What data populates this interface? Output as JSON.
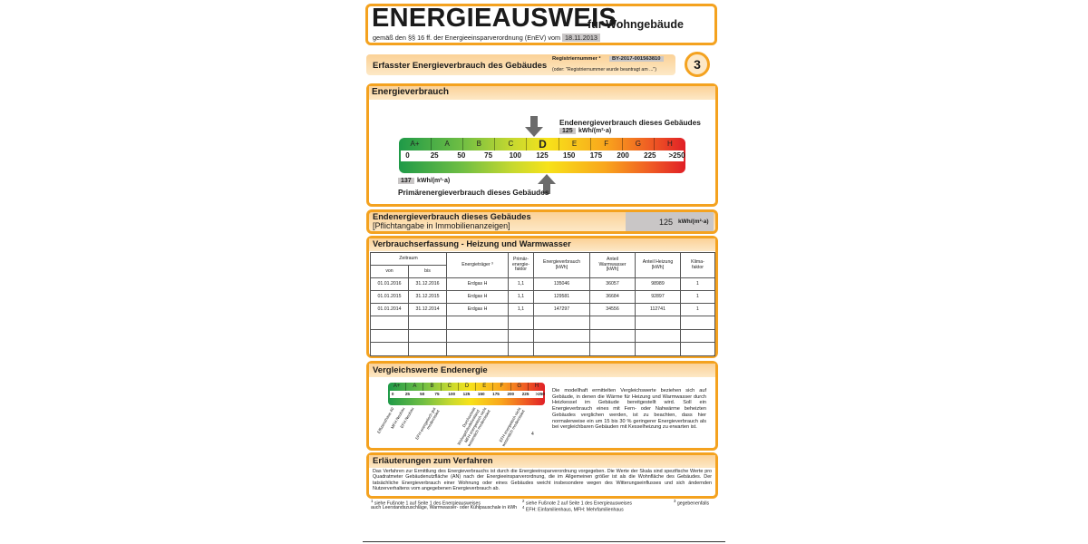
{
  "header": {
    "title": "ENERGIEAUSWEIS",
    "subtitle": "für Wohngebäude",
    "basis": "gemäß den §§ 16 ff. der Energieeinsparverordnung (EnEV) vom ¹",
    "date": "18.11.2013"
  },
  "registration": {
    "heading": "Erfasster Energieverbrauch des Gebäudes",
    "label": "Registriernummer ²",
    "number": "BY-2017-001563810",
    "note": "(oder: \"Registriernummer wurde beantragt am ...\")",
    "page": "3"
  },
  "consumption": {
    "title": "Energieverbrauch",
    "final_label": "Endenergieverbrauch dieses Gebäudes",
    "final_value": "125",
    "final_unit": "kWh/(m²·a)",
    "primary_value": "137",
    "primary_unit": "kWh/(m²·a)",
    "primary_label": "Primärenergieverbrauch dieses Gebäudes",
    "classes": [
      "A+",
      "A",
      "B",
      "C",
      "D",
      "E",
      "F",
      "G",
      "H"
    ],
    "scale": [
      "0",
      "25",
      "50",
      "75",
      "100",
      "125",
      "150",
      "175",
      "200",
      "225",
      ">250"
    ]
  },
  "mandatory": {
    "title": "Endenergieverbrauch dieses Gebäudes",
    "subtitle": "[Pflichtangabe in Immobilienanzeigen]",
    "value": "125",
    "unit": "kWh/(m²·a)"
  },
  "table": {
    "title": "Verbrauchserfassung - Heizung und Warmwasser",
    "group_header": "Zeitraum",
    "headers": [
      "von",
      "bis",
      "Energieträger ³",
      "Primär-\nenergie-\nfaktor",
      "Energieverbrauch\n[kWh]",
      "Anteil\nWarmwasser\n[kWh]",
      "Anteil Heizung\n[kWh]",
      "Klima-\nfaktor"
    ],
    "rows": [
      [
        "01.01.2016",
        "31.12.2016",
        "Erdgas H",
        "1,1",
        "135046",
        "36057",
        "98989",
        "1"
      ],
      [
        "01.01.2015",
        "31.12.2015",
        "Erdgas H",
        "1,1",
        "129581",
        "36684",
        "92897",
        "1"
      ],
      [
        "01.01.2014",
        "31.12.2014",
        "Erdgas H",
        "1,1",
        "147297",
        "34556",
        "112741",
        "1"
      ]
    ]
  },
  "comparison": {
    "title": "Vergleichswerte Endenergie",
    "classes": [
      "A+",
      "A",
      "B",
      "C",
      "D",
      "E",
      "F",
      "G",
      "H"
    ],
    "scale": [
      "0",
      "25",
      "50",
      "75",
      "100",
      "125",
      "150",
      "175",
      "200",
      "225",
      ">250"
    ],
    "benchmarks": [
      "Effizienzhaus 40",
      "MFH Neubau",
      "EFH Neubau",
      "EFH energetisch gut modernisiert",
      "Durchschnitt Wohngebäudebestand",
      "MFH energetisch nicht wesentlich modernisiert",
      "EFH energetisch nicht wesentlich modernisiert"
    ],
    "footnote_mark": "4",
    "text": "Die modellhaft ermittelten Vergleichswerte beziehen sich auf Gebäude, in denen die Wärme für Heizung und Warmwasser durch Heizkessel im Gebäude bereitgestellt wird. Soll ein Energieverbrauch eines mit Fern- oder Nahwärme beheizten Gebäudes verglichen werden, ist zu beachten, dass hier normalerweise ein um 15 bis 30 % geringerer Energieverbrauch als bei vergleichbaren Gebäuden mit Kesselheizung zu erwarten ist."
  },
  "explanation": {
    "title": "Erläuterungen zum Verfahren",
    "text": "Das Verfahren zur Ermittlung des Energieverbrauchs ist durch die Energieeinsparverordnung vorgegeben. Die Werte der Skala sind spezifische Werte pro Quadratmeter Gebäudenutzfläche (AN) nach der Energieeinsparverordnung, die im Allgemeinen größer ist als die Wohnfläche des Gebäudes. Der tatsächliche Energieverbrauch einer Wohnung oder eines Gebäudes weicht insbesondere wegen des Witterungseinflusses und sich ändernden Nutzerverhaltens vom angegebenen Energieverbrauch ab."
  },
  "footnotes": [
    {
      "mark": "1",
      "text": "siehe Fußnote 1 auf Seite 1 des Energieausweises"
    },
    {
      "mark": "2",
      "text": "siehe Fußnote 2 auf Seite 1 des Energieausweises"
    },
    {
      "mark": "3",
      "text": "gegebenenfalls",
      "continuation": "auch Leerstandszuschläge, Warmwasser- oder Kühlpauschale in kWh"
    },
    {
      "mark": "4",
      "text": "EFH: Einfamilienhaus, MFH: Mehrfamilienhaus"
    }
  ]
}
